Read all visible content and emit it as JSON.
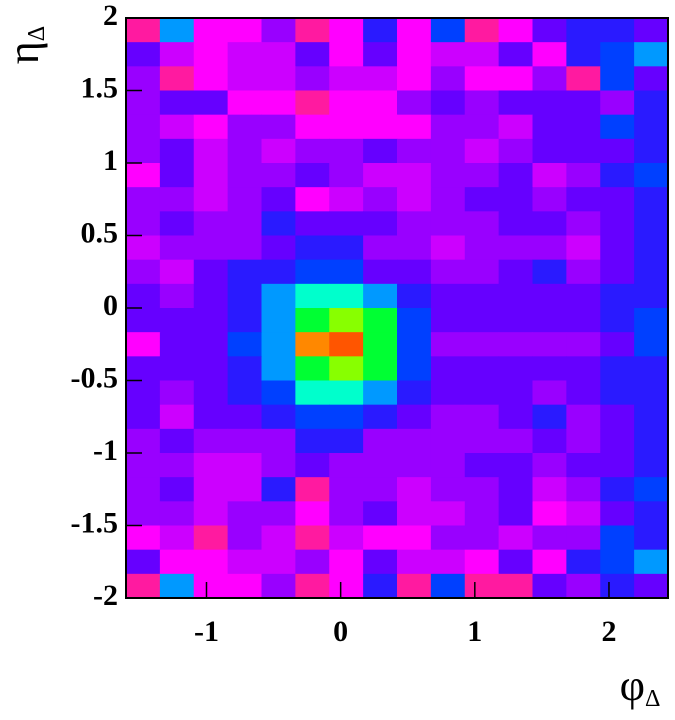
{
  "chart_data": {
    "type": "heatmap",
    "xlabel": {
      "text": "φ",
      "sub": "Δ"
    },
    "ylabel": {
      "text": "η",
      "sub": "Δ"
    },
    "xlim": [
      -1.6,
      2.44
    ],
    "ylim": [
      -2,
      2
    ],
    "xticks": [
      -1,
      0,
      1,
      2
    ],
    "yticks": [
      -2,
      -1.5,
      -1,
      -0.5,
      0,
      0.5,
      1,
      1.5,
      2
    ],
    "palette": [
      "#ff1aa0",
      "#ff00ff",
      "#cc00ff",
      "#9900ff",
      "#6600ff",
      "#2a1aff",
      "#0040ff",
      "#0099ff",
      "#00ffcc",
      "#00ff33",
      "#88ff00",
      "#ff8800",
      "#ff5500"
    ],
    "z": [
      [
        0,
        7,
        1,
        1,
        3,
        0,
        1,
        5,
        1,
        6,
        0,
        1,
        4,
        5,
        5,
        4
      ],
      [
        4,
        2,
        1,
        2,
        2,
        4,
        1,
        4,
        1,
        2,
        2,
        4,
        1,
        5,
        6,
        7
      ],
      [
        3,
        0,
        1,
        2,
        2,
        3,
        2,
        2,
        1,
        3,
        1,
        1,
        3,
        0,
        6,
        4
      ],
      [
        3,
        4,
        4,
        1,
        1,
        0,
        1,
        1,
        3,
        4,
        3,
        4,
        4,
        4,
        3,
        5
      ],
      [
        3,
        2,
        1,
        3,
        3,
        1,
        1,
        1,
        1,
        3,
        3,
        2,
        4,
        4,
        6,
        5
      ],
      [
        3,
        4,
        2,
        3,
        2,
        3,
        3,
        4,
        3,
        3,
        2,
        3,
        4,
        4,
        4,
        5
      ],
      [
        1,
        4,
        2,
        3,
        3,
        4,
        3,
        2,
        2,
        3,
        3,
        4,
        2,
        3,
        5,
        6
      ],
      [
        3,
        3,
        2,
        3,
        4,
        1,
        2,
        3,
        2,
        3,
        4,
        4,
        3,
        4,
        4,
        5
      ],
      [
        3,
        4,
        3,
        3,
        5,
        4,
        4,
        4,
        3,
        3,
        3,
        4,
        4,
        3,
        4,
        5
      ],
      [
        2,
        3,
        3,
        3,
        4,
        5,
        5,
        3,
        3,
        2,
        3,
        3,
        3,
        2,
        4,
        5
      ],
      [
        3,
        2,
        4,
        5,
        5,
        6,
        6,
        4,
        4,
        3,
        3,
        4,
        5,
        3,
        4,
        5
      ],
      [
        4,
        3,
        4,
        5,
        7,
        8,
        8,
        7,
        5,
        4,
        4,
        4,
        4,
        4,
        5,
        5
      ],
      [
        4,
        4,
        4,
        5,
        7,
        9,
        10,
        9,
        6,
        4,
        4,
        4,
        4,
        4,
        5,
        6
      ],
      [
        1,
        4,
        4,
        6,
        7,
        11,
        12,
        9,
        6,
        3,
        3,
        3,
        3,
        3,
        4,
        6
      ],
      [
        4,
        4,
        4,
        5,
        7,
        9,
        10,
        9,
        6,
        4,
        4,
        4,
        4,
        4,
        5,
        5
      ],
      [
        4,
        3,
        4,
        5,
        6,
        8,
        8,
        7,
        5,
        4,
        4,
        4,
        3,
        4,
        5,
        5
      ],
      [
        4,
        2,
        4,
        4,
        5,
        6,
        6,
        5,
        4,
        3,
        3,
        4,
        5,
        3,
        4,
        5
      ],
      [
        3,
        4,
        3,
        3,
        3,
        5,
        5,
        3,
        3,
        3,
        3,
        3,
        4,
        3,
        4,
        5
      ],
      [
        3,
        3,
        2,
        2,
        3,
        4,
        3,
        3,
        3,
        3,
        4,
        4,
        3,
        4,
        4,
        5
      ],
      [
        3,
        4,
        2,
        2,
        5,
        0,
        3,
        3,
        2,
        3,
        3,
        4,
        2,
        3,
        5,
        6
      ],
      [
        3,
        3,
        2,
        3,
        3,
        1,
        3,
        4,
        2,
        2,
        3,
        4,
        1,
        2,
        4,
        5
      ],
      [
        1,
        2,
        0,
        3,
        2,
        0,
        2,
        1,
        1,
        3,
        3,
        2,
        3,
        3,
        6,
        5
      ],
      [
        4,
        1,
        1,
        2,
        2,
        3,
        1,
        4,
        2,
        2,
        1,
        4,
        1,
        5,
        6,
        7
      ],
      [
        0,
        7,
        1,
        1,
        3,
        0,
        1,
        5,
        0,
        6,
        0,
        0,
        4,
        3,
        5,
        4
      ]
    ]
  }
}
